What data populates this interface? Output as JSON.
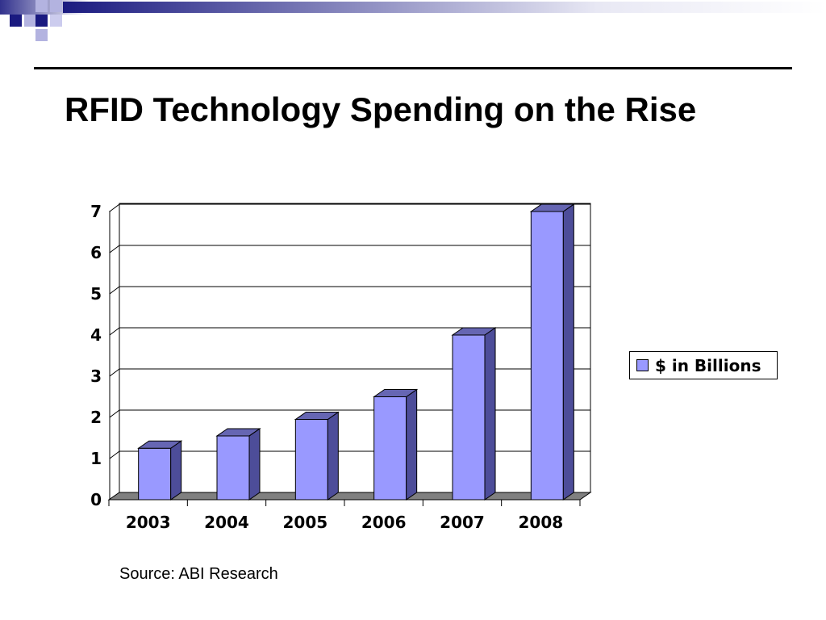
{
  "slide": {
    "title": "RFID Technology Spending on the Rise",
    "source": "Source: ABI Research"
  },
  "colors": {
    "bar_front": "#9999ff",
    "bar_side": "#4d4d99",
    "bar_top": "#6666b3",
    "floor": "#808080",
    "accent_dark": "#1a1a80",
    "accent_light": "#b3b3e0"
  },
  "chart_data": {
    "type": "bar",
    "categories": [
      "2003",
      "2004",
      "2005",
      "2006",
      "2007",
      "2008"
    ],
    "series": [
      {
        "name": "$ in Billions",
        "values": [
          1.25,
          1.55,
          1.95,
          2.5,
          4.0,
          7.0
        ]
      }
    ],
    "yticks": [
      "0",
      "1",
      "2",
      "3",
      "4",
      "5",
      "6",
      "7"
    ],
    "ylim": [
      0,
      7
    ],
    "grid": true,
    "legend_position": "right",
    "style": "3d-column"
  }
}
